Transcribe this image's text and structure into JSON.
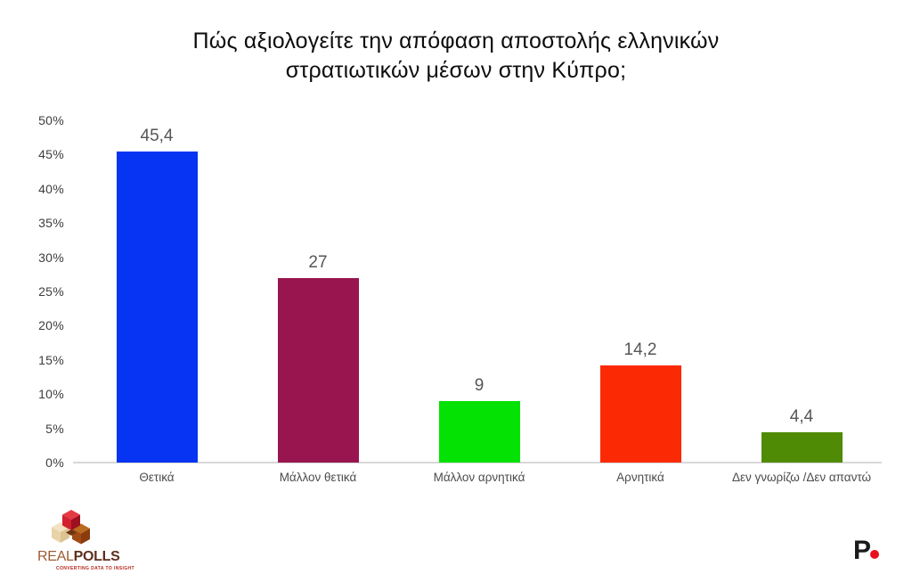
{
  "chart_data": {
    "type": "bar",
    "title": "Πώς αξιολογείτε την απόφαση αποστολής ελληνικών στρατιωτικών μέσων στην Κύπρο;",
    "title_lines": [
      "Πώς αξιολογείτε την απόφαση αποστολής ελληνικών",
      "στρατιωτικών μέσων στην Κύπρο;"
    ],
    "categories": [
      "Θετικά",
      "Μάλλον θετικά",
      "Μάλλον αρνητικά",
      "Αρνητικά",
      "Δεν γνωρίζω /Δεν απαντώ"
    ],
    "values": [
      45.4,
      27,
      9,
      14.2,
      4.4
    ],
    "value_labels": [
      "45,4",
      "27",
      "9",
      "14,2",
      "4,4"
    ],
    "bar_colors": [
      "#0634f2",
      "#98154f",
      "#03e203",
      "#fb2a04",
      "#4f8b04"
    ],
    "xlabel": "",
    "ylabel": "",
    "ylim": [
      0,
      50
    ],
    "ytick_step": 5,
    "ytick_labels": [
      "0%",
      "5%",
      "10%",
      "15%",
      "20%",
      "25%",
      "30%",
      "35%",
      "40%",
      "45%",
      "50%"
    ],
    "grid": false,
    "legend_position": "none"
  },
  "branding": {
    "realpolls": {
      "name_part1": "REAL",
      "name_part2": "POLLS",
      "tagline": "CONVERTING DATA TO INSIGHT"
    },
    "protothema": {
      "letter": "P"
    }
  },
  "colors": {
    "background": "#ffffff",
    "title_text": "#0d0d0d",
    "axis_line": "#d8d8d8",
    "tick_text": "#3d3d3d",
    "value_text": "#565656",
    "logo_red": "#d41f2e",
    "logo_beige": "#ecd9ae",
    "logo_brown": "#a14a12",
    "p_dot_red": "#e8101c"
  }
}
